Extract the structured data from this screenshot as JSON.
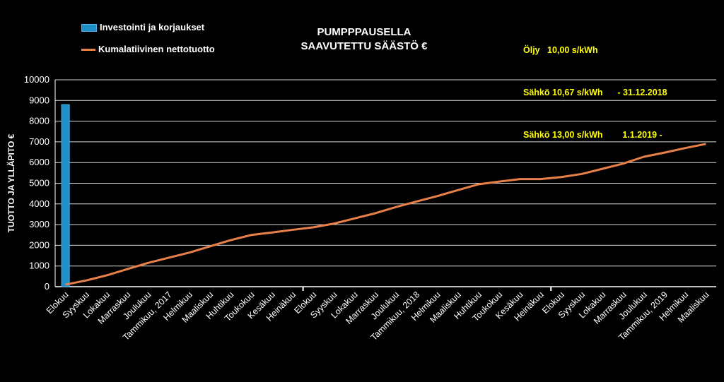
{
  "title_line1": "PUMPPPAUSELLA",
  "title_line2": "SAAVUTETTU SÄÄSTÖ €",
  "legend": {
    "bar_label": "Investointi ja korjaukset",
    "line_label": "Kumalatiivinen nettotuotto"
  },
  "rates": [
    {
      "name": "Öljy",
      "value": "10,00 s/kWh",
      "period": ""
    },
    {
      "name": "Sähkö",
      "value": "10,67 s/kWh",
      "period": "- 31.12.2018"
    },
    {
      "name": "Sähkö",
      "value": "13,00 s/kWh",
      "period": "1.1.2019 -"
    }
  ],
  "colors": {
    "bar": "#1f8fc7",
    "line": "#e8804a",
    "rates": "#ffff00",
    "grid": "#d9d9d9"
  },
  "chart_data": {
    "type": "bar+line",
    "ylabel": "TUOTTO JA YLLÄPITO €",
    "ylim": [
      0,
      10000
    ],
    "yticks": [
      0,
      1000,
      2000,
      3000,
      4000,
      5000,
      6000,
      7000,
      8000,
      9000,
      10000
    ],
    "grid": true,
    "categories": [
      "Elokuu",
      "Syyskuu",
      "Lokakuu",
      "Marraskuu",
      "Joulukuu",
      "Tammikuu, 2017",
      "Helmikuu",
      "Maaliskuu",
      "Huhtikuu",
      "Toukokuu",
      "Kesäkuu",
      "Heinäkuu",
      "Elokuu",
      "Syyskuu",
      "Lokakuu",
      "Marraskuu",
      "Joulukuu",
      "Tammikuu, 2018",
      "Helmikuu",
      "Maaliskuu",
      "Huhtikuu",
      "Toukokuu",
      "Kesäkuu",
      "Heinäkuu",
      "Elokuu",
      "Syyskuu",
      "Lokakuu",
      "Marraskuu",
      "Joulukuu",
      "Tammikuu, 2019",
      "Helmikuu",
      "Maaliskuu"
    ],
    "series": [
      {
        "name": "Investointi ja korjaukset",
        "kind": "bar",
        "values": [
          8800,
          null,
          null,
          null,
          null,
          null,
          null,
          null,
          null,
          null,
          null,
          null,
          null,
          null,
          null,
          null,
          null,
          null,
          null,
          null,
          null,
          null,
          null,
          null,
          null,
          null,
          null,
          null,
          null,
          null,
          null,
          null
        ]
      },
      {
        "name": "Kumalatiivinen nettotuotto",
        "kind": "line",
        "values": [
          100,
          300,
          550,
          850,
          1150,
          1400,
          1650,
          1950,
          2250,
          2500,
          2620,
          2750,
          2870,
          3050,
          3300,
          3550,
          3850,
          4120,
          4380,
          4670,
          4950,
          5080,
          5200,
          5200,
          5300,
          5450,
          5700,
          5950,
          6280,
          6480,
          6700,
          6900
        ]
      }
    ]
  }
}
